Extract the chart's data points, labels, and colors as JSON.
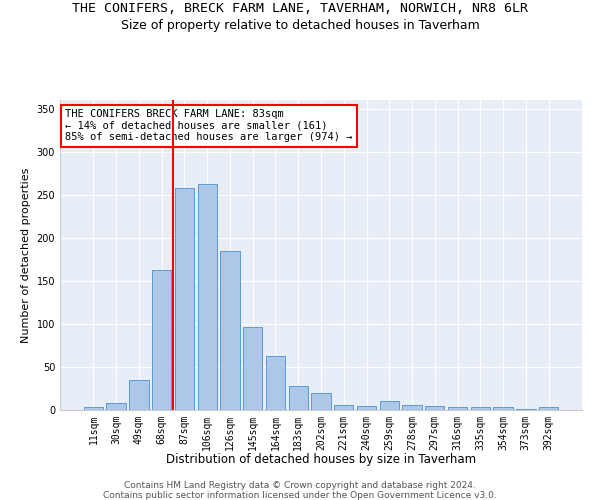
{
  "title1": "THE CONIFERS, BRECK FARM LANE, TAVERHAM, NORWICH, NR8 6LR",
  "title2": "Size of property relative to detached houses in Taverham",
  "xlabel": "Distribution of detached houses by size in Taverham",
  "ylabel": "Number of detached properties",
  "categories": [
    "11sqm",
    "30sqm",
    "49sqm",
    "68sqm",
    "87sqm",
    "106sqm",
    "126sqm",
    "145sqm",
    "164sqm",
    "183sqm",
    "202sqm",
    "221sqm",
    "240sqm",
    "259sqm",
    "278sqm",
    "297sqm",
    "316sqm",
    "335sqm",
    "354sqm",
    "373sqm",
    "392sqm"
  ],
  "values": [
    3,
    8,
    35,
    163,
    258,
    263,
    185,
    96,
    63,
    28,
    20,
    6,
    5,
    10,
    6,
    5,
    4,
    3,
    3,
    1,
    4
  ],
  "bar_color": "#aec6e8",
  "bar_edgecolor": "#5b9bd5",
  "vline_color": "red",
  "vline_x_index": 3.5,
  "annotation_text": "THE CONIFERS BRECK FARM LANE: 83sqm\n← 14% of detached houses are smaller (161)\n85% of semi-detached houses are larger (974) →",
  "annotation_box_color": "white",
  "annotation_box_edgecolor": "red",
  "ylim": [
    0,
    360
  ],
  "yticks": [
    0,
    50,
    100,
    150,
    200,
    250,
    300,
    350
  ],
  "footnote1": "Contains HM Land Registry data © Crown copyright and database right 2024.",
  "footnote2": "Contains public sector information licensed under the Open Government Licence v3.0.",
  "bg_color": "#e8eef8",
  "title1_fontsize": 9.5,
  "title2_fontsize": 9,
  "xlabel_fontsize": 8.5,
  "ylabel_fontsize": 8,
  "tick_fontsize": 7,
  "annotation_fontsize": 7.5,
  "footnote_fontsize": 6.5
}
